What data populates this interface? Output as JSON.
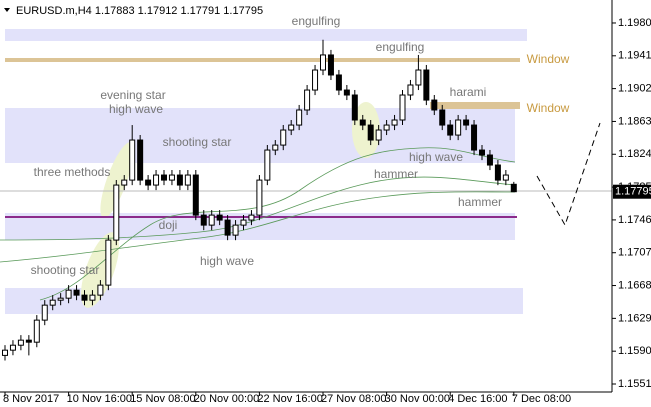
{
  "header": "EURUSD.m,H4  1.17883 1.17912 1.17791 1.17795",
  "chart_data": {
    "type": "candlestick",
    "ylim": [
      1.15415,
      1.20073
    ],
    "yticks": [
      {
        "value": 1.1551,
        "label": "1.15510"
      },
      {
        "value": 1.159,
        "label": "1.15900"
      },
      {
        "value": 1.1629,
        "label": "1.16290"
      },
      {
        "value": 1.1668,
        "label": "1.16680"
      },
      {
        "value": 1.1707,
        "label": "1.17070"
      },
      {
        "value": 1.1746,
        "label": "1.17460"
      },
      {
        "value": 1.1785,
        "label": "1.17850"
      },
      {
        "value": 1.1824,
        "label": "1.18240"
      },
      {
        "value": 1.1863,
        "label": "1.18630"
      },
      {
        "value": 1.1902,
        "label": "1.19020"
      },
      {
        "value": 1.1941,
        "label": "1.19410"
      },
      {
        "value": 1.198,
        "label": "1.19800"
      }
    ],
    "categories": [
      "8 Nov 2017",
      null,
      null,
      null,
      null,
      null,
      null,
      null,
      "10 Nov 16:00",
      null,
      null,
      null,
      null,
      null,
      null,
      null,
      "15 Nov 08:00",
      null,
      null,
      null,
      null,
      null,
      null,
      null,
      "20 Nov 00:00",
      null,
      null,
      null,
      null,
      null,
      null,
      null,
      "22 Nov 16:00",
      null,
      null,
      null,
      null,
      null,
      null,
      null,
      "27 Nov 08:00",
      null,
      null,
      null,
      null,
      null,
      null,
      null,
      "30 Nov 00:00",
      null,
      null,
      null,
      null,
      null,
      null,
      null,
      "4 Dec 16:00",
      null,
      null,
      null,
      null,
      null,
      null,
      null,
      "7 Dec 08:00"
    ],
    "candles": [
      {
        "o": 1.1585,
        "h": 1.15972,
        "l": 1.1579,
        "c": 1.15912
      },
      {
        "o": 1.15912,
        "h": 1.16031,
        "l": 1.15852,
        "c": 1.15971
      },
      {
        "o": 1.15971,
        "h": 1.16091,
        "l": 1.15911,
        "c": 1.16031
      },
      {
        "o": 1.16031,
        "h": 1.16091,
        "l": 1.1585,
        "c": 1.16007
      },
      {
        "o": 1.16007,
        "h": 1.16329,
        "l": 1.15947,
        "c": 1.16269
      },
      {
        "o": 1.16269,
        "h": 1.16507,
        "l": 1.16209,
        "c": 1.16447
      },
      {
        "o": 1.16447,
        "h": 1.16566,
        "l": 1.16387,
        "c": 1.16506
      },
      {
        "o": 1.16506,
        "h": 1.1659,
        "l": 1.16446,
        "c": 1.1653
      },
      {
        "o": 1.1653,
        "h": 1.16685,
        "l": 1.1647,
        "c": 1.16625
      },
      {
        "o": 1.16625,
        "h": 1.16685,
        "l": 1.16506,
        "c": 1.16566
      },
      {
        "o": 1.16566,
        "h": 1.16626,
        "l": 1.16446,
        "c": 1.16506
      },
      {
        "o": 1.16506,
        "h": 1.16626,
        "l": 1.16446,
        "c": 1.16566
      },
      {
        "o": 1.16566,
        "h": 1.16745,
        "l": 1.16506,
        "c": 1.16685
      },
      {
        "o": 1.16685,
        "h": 1.1728,
        "l": 1.16625,
        "c": 1.1722
      },
      {
        "o": 1.1722,
        "h": 1.17934,
        "l": 1.1716,
        "c": 1.17874
      },
      {
        "o": 1.17874,
        "h": 1.17993,
        "l": 1.17814,
        "c": 1.17933
      },
      {
        "o": 1.17933,
        "h": 1.18587,
        "l": 1.17873,
        "c": 1.18409
      },
      {
        "o": 1.18409,
        "h": 1.18469,
        "l": 1.17873,
        "c": 1.17933
      },
      {
        "o": 1.17933,
        "h": 1.17993,
        "l": 1.17814,
        "c": 1.17874
      },
      {
        "o": 1.17874,
        "h": 1.18053,
        "l": 1.17814,
        "c": 1.17993
      },
      {
        "o": 1.17993,
        "h": 1.18053,
        "l": 1.17873,
        "c": 1.17933
      },
      {
        "o": 1.17933,
        "h": 1.18053,
        "l": 1.17873,
        "c": 1.17993
      },
      {
        "o": 1.17993,
        "h": 1.18053,
        "l": 1.17814,
        "c": 1.17874
      },
      {
        "o": 1.17874,
        "h": 1.18053,
        "l": 1.17814,
        "c": 1.17993
      },
      {
        "o": 1.17993,
        "h": 1.18053,
        "l": 1.17457,
        "c": 1.17517
      },
      {
        "o": 1.17517,
        "h": 1.17577,
        "l": 1.17338,
        "c": 1.17398
      },
      {
        "o": 1.17398,
        "h": 1.17577,
        "l": 1.17338,
        "c": 1.17517
      },
      {
        "o": 1.17517,
        "h": 1.17577,
        "l": 1.17398,
        "c": 1.17458
      },
      {
        "o": 1.17458,
        "h": 1.17518,
        "l": 1.17219,
        "c": 1.17279
      },
      {
        "o": 1.17279,
        "h": 1.17458,
        "l": 1.17219,
        "c": 1.17398
      },
      {
        "o": 1.17398,
        "h": 1.17518,
        "l": 1.17338,
        "c": 1.17458
      },
      {
        "o": 1.17458,
        "h": 1.17577,
        "l": 1.17398,
        "c": 1.17517
      },
      {
        "o": 1.17517,
        "h": 1.17993,
        "l": 1.17457,
        "c": 1.17933
      },
      {
        "o": 1.17933,
        "h": 1.1835,
        "l": 1.17873,
        "c": 1.1829
      },
      {
        "o": 1.1829,
        "h": 1.18409,
        "l": 1.1823,
        "c": 1.18349
      },
      {
        "o": 1.18349,
        "h": 1.18588,
        "l": 1.18289,
        "c": 1.18528
      },
      {
        "o": 1.18528,
        "h": 1.18647,
        "l": 1.18468,
        "c": 1.18587
      },
      {
        "o": 1.18587,
        "h": 1.18826,
        "l": 1.18527,
        "c": 1.18766
      },
      {
        "o": 1.18766,
        "h": 1.19063,
        "l": 1.18706,
        "c": 1.19003
      },
      {
        "o": 1.19003,
        "h": 1.19301,
        "l": 1.18943,
        "c": 1.19241
      },
      {
        "o": 1.19241,
        "h": 1.196,
        "l": 1.19181,
        "c": 1.1942
      },
      {
        "o": 1.1942,
        "h": 1.1948,
        "l": 1.19122,
        "c": 1.19182
      },
      {
        "o": 1.19182,
        "h": 1.19242,
        "l": 1.18943,
        "c": 1.19003
      },
      {
        "o": 1.19003,
        "h": 1.19063,
        "l": 1.18884,
        "c": 1.18944
      },
      {
        "o": 1.18944,
        "h": 1.19004,
        "l": 1.18587,
        "c": 1.18647
      },
      {
        "o": 1.18647,
        "h": 1.18707,
        "l": 1.18527,
        "c": 1.18587
      },
      {
        "o": 1.18587,
        "h": 1.18647,
        "l": 1.18349,
        "c": 1.18409
      },
      {
        "o": 1.18409,
        "h": 1.18588,
        "l": 1.18349,
        "c": 1.18528
      },
      {
        "o": 1.18528,
        "h": 1.18647,
        "l": 1.18468,
        "c": 1.18587
      },
      {
        "o": 1.18587,
        "h": 1.18707,
        "l": 1.18527,
        "c": 1.18647
      },
      {
        "o": 1.18647,
        "h": 1.19004,
        "l": 1.18587,
        "c": 1.18944
      },
      {
        "o": 1.18944,
        "h": 1.19123,
        "l": 1.18884,
        "c": 1.19063
      },
      {
        "o": 1.19063,
        "h": 1.1942,
        "l": 1.19003,
        "c": 1.19241
      },
      {
        "o": 1.19241,
        "h": 1.19301,
        "l": 1.18824,
        "c": 1.18884
      },
      {
        "o": 1.18884,
        "h": 1.18944,
        "l": 1.18706,
        "c": 1.18766
      },
      {
        "o": 1.18766,
        "h": 1.18826,
        "l": 1.18527,
        "c": 1.18587
      },
      {
        "o": 1.18587,
        "h": 1.18647,
        "l": 1.18408,
        "c": 1.18468
      },
      {
        "o": 1.18468,
        "h": 1.18707,
        "l": 1.18408,
        "c": 1.18647
      },
      {
        "o": 1.18647,
        "h": 1.18707,
        "l": 1.18527,
        "c": 1.18587
      },
      {
        "o": 1.18587,
        "h": 1.18647,
        "l": 1.1823,
        "c": 1.1829
      },
      {
        "o": 1.1829,
        "h": 1.1835,
        "l": 1.18171,
        "c": 1.18231
      },
      {
        "o": 1.18231,
        "h": 1.18291,
        "l": 1.18052,
        "c": 1.18112
      },
      {
        "o": 1.18112,
        "h": 1.18172,
        "l": 1.17873,
        "c": 1.17933
      },
      {
        "o": 1.17933,
        "h": 1.18053,
        "l": 1.17873,
        "c": 1.17993
      },
      {
        "o": 1.17883,
        "h": 1.17912,
        "l": 1.17791,
        "c": 1.17795
      }
    ],
    "annotations": [
      "engulfing",
      "engulfing",
      "evening star",
      "high wave",
      "shooting star",
      "three methods",
      "harami",
      "high wave",
      "hammer",
      "hammer",
      "doji",
      "high wave",
      "shooting star",
      "Window",
      "Window"
    ]
  }
}
